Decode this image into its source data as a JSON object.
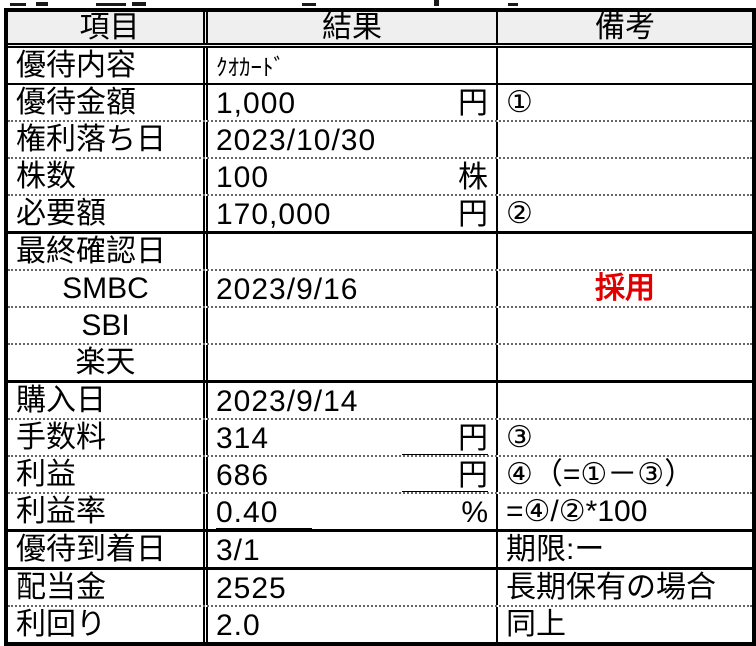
{
  "colors": {
    "accent_red": "#e00000",
    "header_bg": "#efefef",
    "grid": "#000000"
  },
  "header": {
    "col_item": "項目",
    "col_result": "結果",
    "col_note": "備考"
  },
  "rows": [
    {
      "item": "優待内容",
      "value": "ｸｵｶｰﾄﾞ",
      "unit": "",
      "note": ""
    },
    {
      "item": "優待金額",
      "value": "1,000",
      "unit": "円",
      "note": "①"
    },
    {
      "item": "権利落ち日",
      "value": "2023/10/30",
      "unit": "",
      "note": ""
    },
    {
      "item": "株数",
      "value": "100",
      "unit": "株",
      "note": ""
    },
    {
      "item": "必要額",
      "value": "170,000",
      "unit": "円",
      "note": "②"
    },
    {
      "item": "最終確認日",
      "value": "",
      "unit": "",
      "note": ""
    },
    {
      "item": "SMBC",
      "value": "2023/9/16",
      "unit": "",
      "note": "採用"
    },
    {
      "item": "SBI",
      "value": "",
      "unit": "",
      "note": ""
    },
    {
      "item": "楽天",
      "value": "",
      "unit": "",
      "note": ""
    },
    {
      "item": "購入日",
      "value": "2023/9/14",
      "unit": "",
      "note": ""
    },
    {
      "item": "手数料",
      "value": "314",
      "unit": "円",
      "note": "③"
    },
    {
      "item": "利益",
      "value": "686",
      "unit": "円",
      "note": "④（=①－③）"
    },
    {
      "item": "利益率",
      "value": "0.40",
      "unit": "%",
      "note": "=④/②*100"
    },
    {
      "item": "優待到着日",
      "value": "3/1",
      "unit": "",
      "note": "期限:ー"
    },
    {
      "item": "配当金",
      "value": "2525",
      "unit": "",
      "note": "長期保有の場合"
    },
    {
      "item": "利回り",
      "value": "2.0",
      "unit": "",
      "note": "同上"
    }
  ]
}
